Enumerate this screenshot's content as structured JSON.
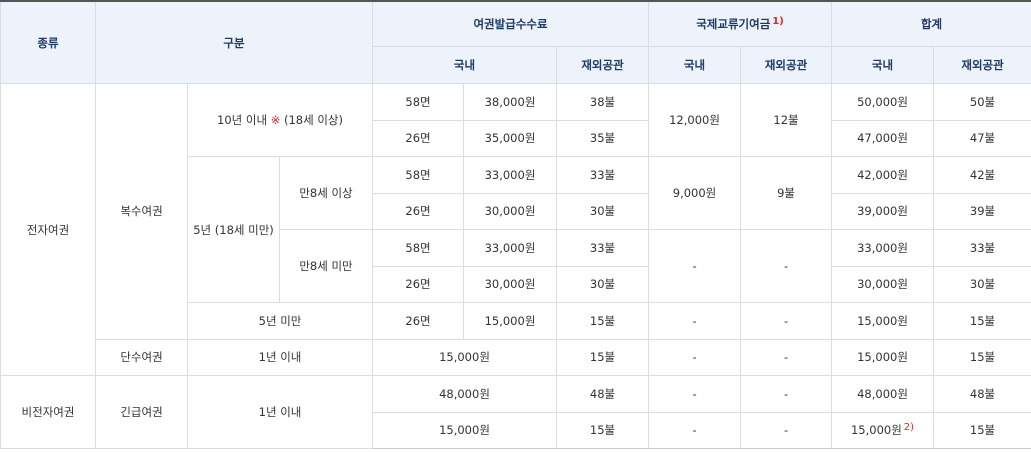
{
  "table": {
    "header": [
      [
        "종류",
        "구분",
        "여권발급수수료",
        {
          "text": "국제교류기여금",
          "note": "1)"
        },
        "합계"
      ],
      [
        "국내",
        "재외공관",
        "국내",
        "재외공관",
        "국내",
        "재외공관"
      ]
    ],
    "rows": [
      [
        "전자여권",
        "복수여권",
        {
          "label": "10년 이내",
          "mark": "※",
          "note": "(18세 이상)"
        },
        "58면",
        "38,000원",
        "38불",
        "12,000원",
        "12불",
        "50,000원",
        "50불"
      ],
      [
        "26면",
        "35,000원",
        "35불",
        "47,000원",
        "47불"
      ],
      [
        "5년 (18세 미만)",
        "만8세 이상",
        "58면",
        "33,000원",
        "33불",
        "9,000원",
        "9불",
        "42,000원",
        "42불"
      ],
      [
        "26면",
        "30,000원",
        "30불",
        "39,000원",
        "39불"
      ],
      [
        "만8세 미만",
        "58면",
        "33,000원",
        "33불",
        "-",
        "-",
        "33,000원",
        "33불"
      ],
      [
        "26면",
        "30,000원",
        "30불",
        "30,000원",
        "30불"
      ],
      [
        "5년 미만",
        "26면",
        "15,000원",
        "15불",
        "-",
        "-",
        "15,000원",
        "15불"
      ],
      [
        "단수여권",
        "1년 이내",
        "15,000원",
        "15불",
        "-",
        "-",
        "15,000원",
        "15불"
      ],
      [
        "비전자여권",
        "긴급여권",
        "1년 이내",
        "48,000원",
        "48불",
        "-",
        "-",
        "48,000원",
        "48불"
      ],
      [
        "15,000원",
        "15불",
        "-",
        "-",
        {
          "text": "15,000원",
          "note": "2)"
        },
        "15불"
      ]
    ]
  }
}
